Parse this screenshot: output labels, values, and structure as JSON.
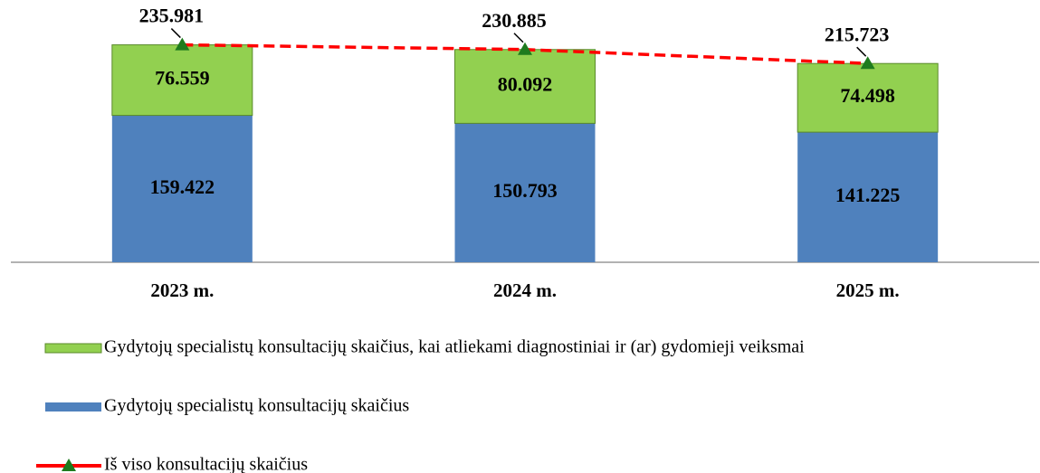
{
  "chart_data": {
    "type": "bar",
    "categories": [
      "2023 m.",
      "2024 m.",
      "2025 m."
    ],
    "series": [
      {
        "name": "Gydytojų specialistų konsultacijų skaičius, kai atliekami diagnostiniai ir (ar) gydomieji veiksmai",
        "type": "bar",
        "color": "#92d050",
        "values": [
          76559,
          80092,
          74498
        ],
        "value_labels": [
          "76.559",
          "80.092",
          "74.498"
        ]
      },
      {
        "name": "Gydytojų specialistų konsultacijų skaičius",
        "type": "bar",
        "color": "#4f81bd",
        "values": [
          159422,
          150793,
          141225
        ],
        "value_labels": [
          "159.422",
          "150.793",
          "141.225"
        ]
      },
      {
        "name": "Iš viso konsultacijų skaičius",
        "type": "line",
        "color": "#ff0000",
        "marker_color": "#1e7b1e",
        "values": [
          235981,
          230885,
          215723
        ],
        "value_labels": [
          "235.981",
          "230.885",
          "215.723"
        ]
      }
    ],
    "ylim": [
      0,
      265000
    ],
    "stacked": true
  }
}
